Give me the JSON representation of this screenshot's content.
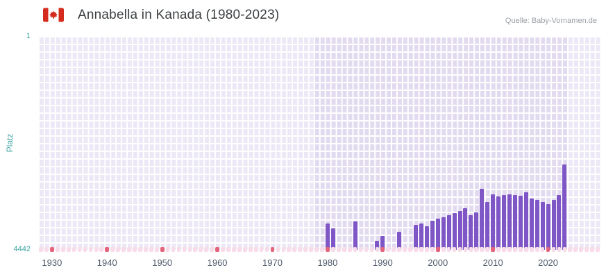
{
  "header": {
    "title": "Annabella in Kanada (1980-2023)",
    "source": "Quelle: Baby-Vornamen.de",
    "flag_icon": "canada-flag"
  },
  "chart_data": {
    "type": "bar",
    "title": "Annabella in Kanada (1980-2023)",
    "xlabel": "",
    "ylabel": "Platz",
    "y_tick_labels": [
      "1",
      "4442"
    ],
    "ylim": [
      1,
      4442
    ],
    "y_axis_inverted": true,
    "x_domain": [
      1928,
      2030
    ],
    "x_ticks": [
      1930,
      1940,
      1950,
      1960,
      1970,
      1980,
      1990,
      2000,
      2010,
      2020
    ],
    "highlight_year_range": [
      1978,
      2023
    ],
    "decade_marker_years": [
      1930,
      1940,
      1950,
      1960,
      1970,
      1980,
      1990,
      2000,
      2010,
      2020
    ],
    "grid": true,
    "legend_position": "none",
    "series": [
      {
        "name": "Annabella",
        "points": [
          [
            1980,
            3890
          ],
          [
            1981,
            4000
          ],
          [
            1985,
            3850
          ],
          [
            1989,
            4260
          ],
          [
            1990,
            4160
          ],
          [
            1993,
            4060
          ],
          [
            1996,
            3930
          ],
          [
            1997,
            3890
          ],
          [
            1998,
            3950
          ],
          [
            1999,
            3840
          ],
          [
            2000,
            3800
          ],
          [
            2001,
            3760
          ],
          [
            2002,
            3720
          ],
          [
            2003,
            3680
          ],
          [
            2004,
            3630
          ],
          [
            2005,
            3580
          ],
          [
            2006,
            3720
          ],
          [
            2007,
            3660
          ],
          [
            2008,
            3170
          ],
          [
            2009,
            3440
          ],
          [
            2010,
            3290
          ],
          [
            2011,
            3330
          ],
          [
            2012,
            3300
          ],
          [
            2013,
            3290
          ],
          [
            2014,
            3300
          ],
          [
            2015,
            3320
          ],
          [
            2016,
            3250
          ],
          [
            2017,
            3380
          ],
          [
            2018,
            3400
          ],
          [
            2019,
            3450
          ],
          [
            2020,
            3490
          ],
          [
            2021,
            3400
          ],
          [
            2022,
            3310
          ],
          [
            2023,
            2670
          ]
        ]
      }
    ],
    "colors": {
      "bar": "#7f56c5",
      "plot_bg": "#e2dbf0",
      "plot_bg_outside": "#ece8f6",
      "grid_line": "#ffffff",
      "axis_label": "#3fa5a5",
      "tick_label": "#4e5a6b",
      "title_text": "#3c4043",
      "source_text": "#9aa0a6",
      "marker_light": "#f8dce8",
      "marker_decade": "#e4647c",
      "flag_red": "#d52b1e"
    }
  }
}
